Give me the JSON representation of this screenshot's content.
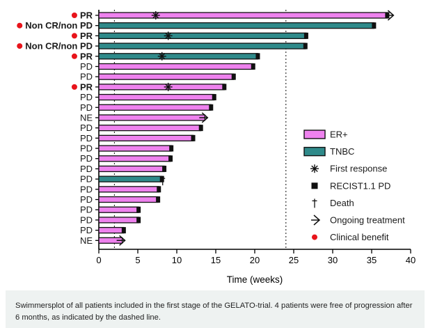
{
  "chart_data": {
    "type": "swimmer",
    "xlabel": "Time (weeks)",
    "xlim": [
      0,
      40
    ],
    "xticks": [
      0,
      5,
      10,
      15,
      20,
      25,
      30,
      35,
      40
    ],
    "reference_lines": [
      2,
      24
    ],
    "colors": {
      "ER+": "#ee82ee",
      "TNBC": "#2f8a8a",
      "clinical_benefit": "#e8141b"
    },
    "legend": [
      {
        "key": "ER+",
        "label": "ER+",
        "symbol": "box-pink"
      },
      {
        "key": "TNBC",
        "label": "TNBC",
        "symbol": "box-teal"
      },
      {
        "key": "first_response",
        "label": "First response",
        "symbol": "asterisk"
      },
      {
        "key": "pd",
        "label": "RECIST1.1 PD",
        "symbol": "square"
      },
      {
        "key": "death",
        "label": "Death",
        "symbol": "dagger"
      },
      {
        "key": "ongoing",
        "label": "Ongoing treatment",
        "symbol": "arrow"
      },
      {
        "key": "benefit",
        "label": "Clinical benefit",
        "symbol": "dot"
      }
    ],
    "patients": [
      {
        "label": "PR",
        "subtype": "ER+",
        "duration": 37,
        "response_at": 7.3,
        "pd": true,
        "ongoing": true,
        "death": false,
        "benefit": true
      },
      {
        "label": "Non CR/non PD",
        "subtype": "TNBC",
        "duration": 35.3,
        "response_at": null,
        "pd": true,
        "ongoing": false,
        "death": false,
        "benefit": true
      },
      {
        "label": "PR",
        "subtype": "TNBC",
        "duration": 26.6,
        "response_at": 8.9,
        "pd": true,
        "ongoing": false,
        "death": false,
        "benefit": true
      },
      {
        "label": "Non CR/non PD",
        "subtype": "TNBC",
        "duration": 26.5,
        "response_at": null,
        "pd": true,
        "ongoing": false,
        "death": false,
        "benefit": true
      },
      {
        "label": "PR",
        "subtype": "TNBC",
        "duration": 20.4,
        "response_at": 8.1,
        "pd": true,
        "ongoing": false,
        "death": false,
        "benefit": true
      },
      {
        "label": "PD",
        "subtype": "ER+",
        "duration": 19.8,
        "response_at": null,
        "pd": true,
        "ongoing": false,
        "death": false,
        "benefit": false
      },
      {
        "label": "PD",
        "subtype": "ER+",
        "duration": 17.3,
        "response_at": null,
        "pd": true,
        "ongoing": false,
        "death": false,
        "benefit": false
      },
      {
        "label": "PR",
        "subtype": "ER+",
        "duration": 16.1,
        "response_at": 8.9,
        "pd": true,
        "ongoing": false,
        "death": false,
        "benefit": true
      },
      {
        "label": "PD",
        "subtype": "ER+",
        "duration": 14.8,
        "response_at": null,
        "pd": true,
        "ongoing": false,
        "death": false,
        "benefit": false
      },
      {
        "label": "PD",
        "subtype": "ER+",
        "duration": 14.4,
        "response_at": null,
        "pd": true,
        "ongoing": false,
        "death": false,
        "benefit": false
      },
      {
        "label": "NE",
        "subtype": "ER+",
        "duration": 13.6,
        "response_at": null,
        "pd": false,
        "ongoing": true,
        "death": false,
        "benefit": false
      },
      {
        "label": "PD",
        "subtype": "ER+",
        "duration": 13.1,
        "response_at": null,
        "pd": true,
        "ongoing": false,
        "death": false,
        "benefit": false
      },
      {
        "label": "PD",
        "subtype": "ER+",
        "duration": 12.1,
        "response_at": null,
        "pd": true,
        "ongoing": false,
        "death": false,
        "benefit": false
      },
      {
        "label": "PD",
        "subtype": "ER+",
        "duration": 9.3,
        "response_at": null,
        "pd": true,
        "ongoing": false,
        "death": false,
        "benefit": false
      },
      {
        "label": "PD",
        "subtype": "ER+",
        "duration": 9.2,
        "response_at": null,
        "pd": true,
        "ongoing": false,
        "death": false,
        "benefit": false
      },
      {
        "label": "PD",
        "subtype": "ER+",
        "duration": 8.4,
        "response_at": null,
        "pd": true,
        "ongoing": false,
        "death": false,
        "benefit": false
      },
      {
        "label": "PD",
        "subtype": "TNBC",
        "duration": 8.1,
        "response_at": null,
        "pd": true,
        "ongoing": false,
        "death": true,
        "benefit": false
      },
      {
        "label": "PD",
        "subtype": "ER+",
        "duration": 7.7,
        "response_at": null,
        "pd": true,
        "ongoing": false,
        "death": false,
        "benefit": false
      },
      {
        "label": "PD",
        "subtype": "ER+",
        "duration": 7.6,
        "response_at": null,
        "pd": true,
        "ongoing": false,
        "death": false,
        "benefit": false
      },
      {
        "label": "PD",
        "subtype": "ER+",
        "duration": 5.1,
        "response_at": null,
        "pd": true,
        "ongoing": false,
        "death": false,
        "benefit": false
      },
      {
        "label": "PD",
        "subtype": "ER+",
        "duration": 5.1,
        "response_at": null,
        "pd": true,
        "ongoing": false,
        "death": false,
        "benefit": false
      },
      {
        "label": "PD",
        "subtype": "ER+",
        "duration": 3.2,
        "response_at": null,
        "pd": true,
        "ongoing": false,
        "death": false,
        "benefit": false
      },
      {
        "label": "NE",
        "subtype": "ER+",
        "duration": 3.0,
        "response_at": null,
        "pd": false,
        "ongoing": true,
        "death": false,
        "benefit": false
      }
    ]
  },
  "caption": "Swimmersplot of all patients included in the first stage of the GELATO-trial. 4 patients were free of progression after 6 months, as indicated by the dashed line."
}
